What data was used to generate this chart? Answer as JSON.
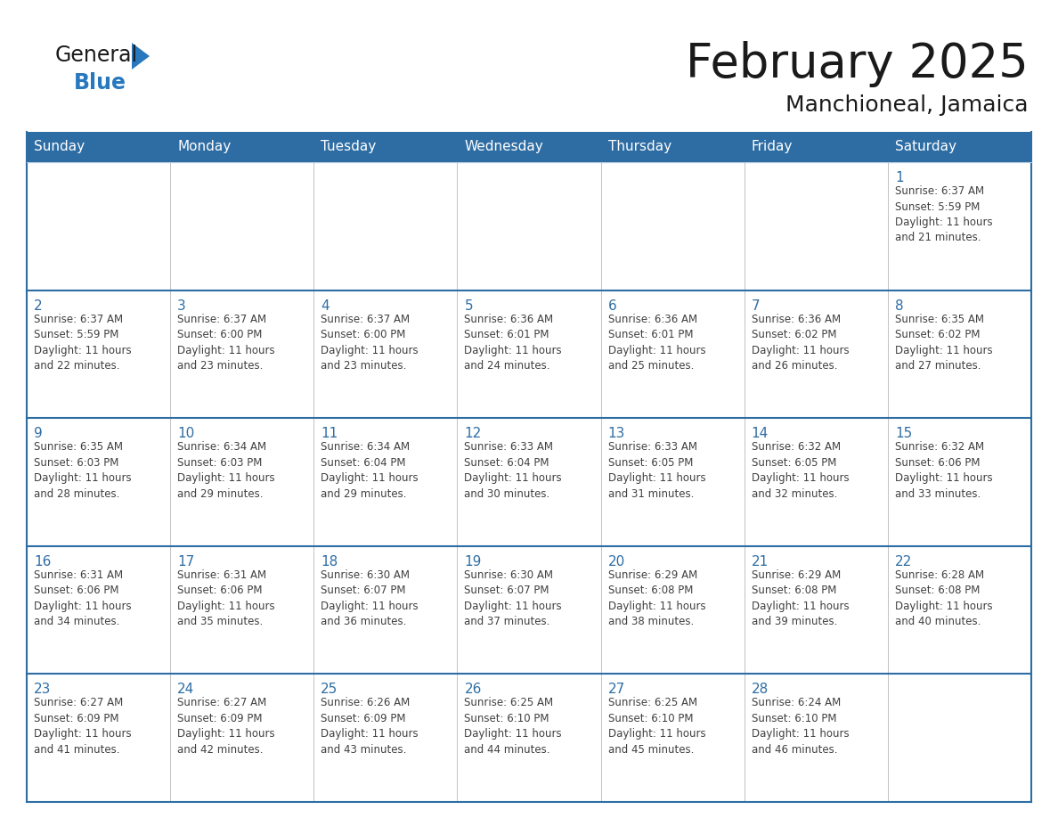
{
  "title": "February 2025",
  "subtitle": "Manchioneal, Jamaica",
  "days_of_week": [
    "Sunday",
    "Monday",
    "Tuesday",
    "Wednesday",
    "Thursday",
    "Friday",
    "Saturday"
  ],
  "header_bg": "#2E6DA4",
  "header_text_color": "#FFFFFF",
  "cell_bg": "#FFFFFF",
  "row_border_color": "#2E6DA4",
  "col_border_color": "#CCCCCC",
  "day_number_color": "#2E6DA4",
  "info_text_color": "#404040",
  "title_color": "#1a1a1a",
  "logo_black": "#1a1a1a",
  "logo_blue": "#2878BE",
  "calendar_data": [
    [
      {
        "day": null,
        "info": ""
      },
      {
        "day": null,
        "info": ""
      },
      {
        "day": null,
        "info": ""
      },
      {
        "day": null,
        "info": ""
      },
      {
        "day": null,
        "info": ""
      },
      {
        "day": null,
        "info": ""
      },
      {
        "day": 1,
        "info": "Sunrise: 6:37 AM\nSunset: 5:59 PM\nDaylight: 11 hours\nand 21 minutes."
      }
    ],
    [
      {
        "day": 2,
        "info": "Sunrise: 6:37 AM\nSunset: 5:59 PM\nDaylight: 11 hours\nand 22 minutes."
      },
      {
        "day": 3,
        "info": "Sunrise: 6:37 AM\nSunset: 6:00 PM\nDaylight: 11 hours\nand 23 minutes."
      },
      {
        "day": 4,
        "info": "Sunrise: 6:37 AM\nSunset: 6:00 PM\nDaylight: 11 hours\nand 23 minutes."
      },
      {
        "day": 5,
        "info": "Sunrise: 6:36 AM\nSunset: 6:01 PM\nDaylight: 11 hours\nand 24 minutes."
      },
      {
        "day": 6,
        "info": "Sunrise: 6:36 AM\nSunset: 6:01 PM\nDaylight: 11 hours\nand 25 minutes."
      },
      {
        "day": 7,
        "info": "Sunrise: 6:36 AM\nSunset: 6:02 PM\nDaylight: 11 hours\nand 26 minutes."
      },
      {
        "day": 8,
        "info": "Sunrise: 6:35 AM\nSunset: 6:02 PM\nDaylight: 11 hours\nand 27 minutes."
      }
    ],
    [
      {
        "day": 9,
        "info": "Sunrise: 6:35 AM\nSunset: 6:03 PM\nDaylight: 11 hours\nand 28 minutes."
      },
      {
        "day": 10,
        "info": "Sunrise: 6:34 AM\nSunset: 6:03 PM\nDaylight: 11 hours\nand 29 minutes."
      },
      {
        "day": 11,
        "info": "Sunrise: 6:34 AM\nSunset: 6:04 PM\nDaylight: 11 hours\nand 29 minutes."
      },
      {
        "day": 12,
        "info": "Sunrise: 6:33 AM\nSunset: 6:04 PM\nDaylight: 11 hours\nand 30 minutes."
      },
      {
        "day": 13,
        "info": "Sunrise: 6:33 AM\nSunset: 6:05 PM\nDaylight: 11 hours\nand 31 minutes."
      },
      {
        "day": 14,
        "info": "Sunrise: 6:32 AM\nSunset: 6:05 PM\nDaylight: 11 hours\nand 32 minutes."
      },
      {
        "day": 15,
        "info": "Sunrise: 6:32 AM\nSunset: 6:06 PM\nDaylight: 11 hours\nand 33 minutes."
      }
    ],
    [
      {
        "day": 16,
        "info": "Sunrise: 6:31 AM\nSunset: 6:06 PM\nDaylight: 11 hours\nand 34 minutes."
      },
      {
        "day": 17,
        "info": "Sunrise: 6:31 AM\nSunset: 6:06 PM\nDaylight: 11 hours\nand 35 minutes."
      },
      {
        "day": 18,
        "info": "Sunrise: 6:30 AM\nSunset: 6:07 PM\nDaylight: 11 hours\nand 36 minutes."
      },
      {
        "day": 19,
        "info": "Sunrise: 6:30 AM\nSunset: 6:07 PM\nDaylight: 11 hours\nand 37 minutes."
      },
      {
        "day": 20,
        "info": "Sunrise: 6:29 AM\nSunset: 6:08 PM\nDaylight: 11 hours\nand 38 minutes."
      },
      {
        "day": 21,
        "info": "Sunrise: 6:29 AM\nSunset: 6:08 PM\nDaylight: 11 hours\nand 39 minutes."
      },
      {
        "day": 22,
        "info": "Sunrise: 6:28 AM\nSunset: 6:08 PM\nDaylight: 11 hours\nand 40 minutes."
      }
    ],
    [
      {
        "day": 23,
        "info": "Sunrise: 6:27 AM\nSunset: 6:09 PM\nDaylight: 11 hours\nand 41 minutes."
      },
      {
        "day": 24,
        "info": "Sunrise: 6:27 AM\nSunset: 6:09 PM\nDaylight: 11 hours\nand 42 minutes."
      },
      {
        "day": 25,
        "info": "Sunrise: 6:26 AM\nSunset: 6:09 PM\nDaylight: 11 hours\nand 43 minutes."
      },
      {
        "day": 26,
        "info": "Sunrise: 6:25 AM\nSunset: 6:10 PM\nDaylight: 11 hours\nand 44 minutes."
      },
      {
        "day": 27,
        "info": "Sunrise: 6:25 AM\nSunset: 6:10 PM\nDaylight: 11 hours\nand 45 minutes."
      },
      {
        "day": 28,
        "info": "Sunrise: 6:24 AM\nSunset: 6:10 PM\nDaylight: 11 hours\nand 46 minutes."
      },
      {
        "day": null,
        "info": ""
      }
    ]
  ]
}
